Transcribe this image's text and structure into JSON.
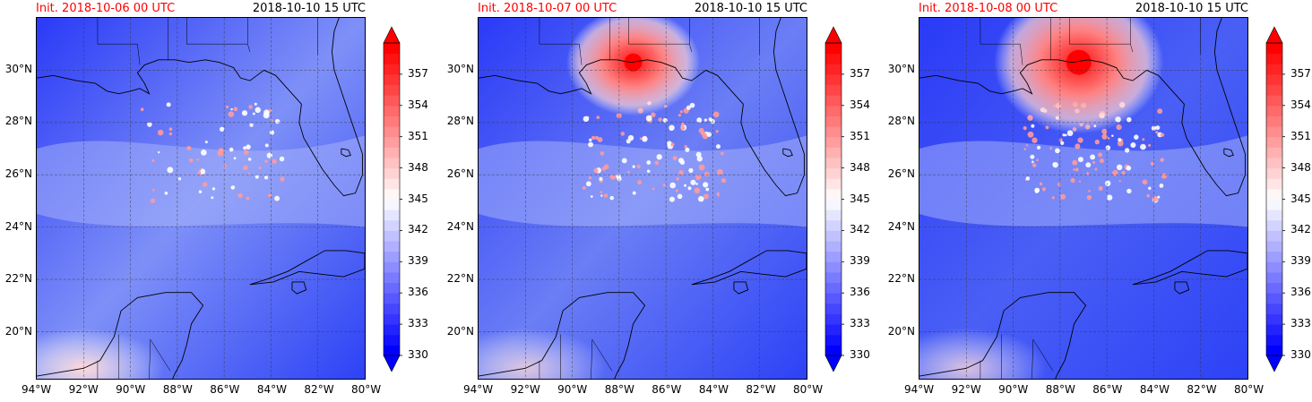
{
  "panels": [
    {
      "init_label": "Init. 2018-10-06 00 UTC",
      "valid_label": "2018-10-10 15 UTC",
      "field": {
        "bg": "#7e90f7",
        "storm": "none"
      }
    },
    {
      "init_label": "Init. 2018-10-07 00 UTC",
      "valid_label": "2018-10-10 15 UTC",
      "field": {
        "bg": "#6b7ef5",
        "storm": "moderate"
      }
    },
    {
      "init_label": "Init. 2018-10-08 00 UTC",
      "valid_label": "2018-10-10 15 UTC",
      "field": {
        "bg": "#4a5ff5",
        "storm": "strong"
      }
    }
  ],
  "axes": {
    "lat_labels": [
      "30°N",
      "28°N",
      "26°N",
      "24°N",
      "22°N",
      "20°N"
    ],
    "lon_labels": [
      "94°W",
      "92°W",
      "90°W",
      "88°W",
      "86°W",
      "84°W",
      "82°W",
      "80°W"
    ],
    "lon_range": [
      -94,
      -80
    ],
    "lat_range": [
      18.2,
      32
    ]
  },
  "colorbar": {
    "min": 330,
    "max": 360,
    "tick_labels": [
      "357",
      "354",
      "351",
      "348",
      "345",
      "342",
      "339",
      "336",
      "333",
      "330"
    ],
    "colors": {
      "low": "#0000ff",
      "mid": "#ffffff",
      "high": "#ff0000"
    }
  }
}
